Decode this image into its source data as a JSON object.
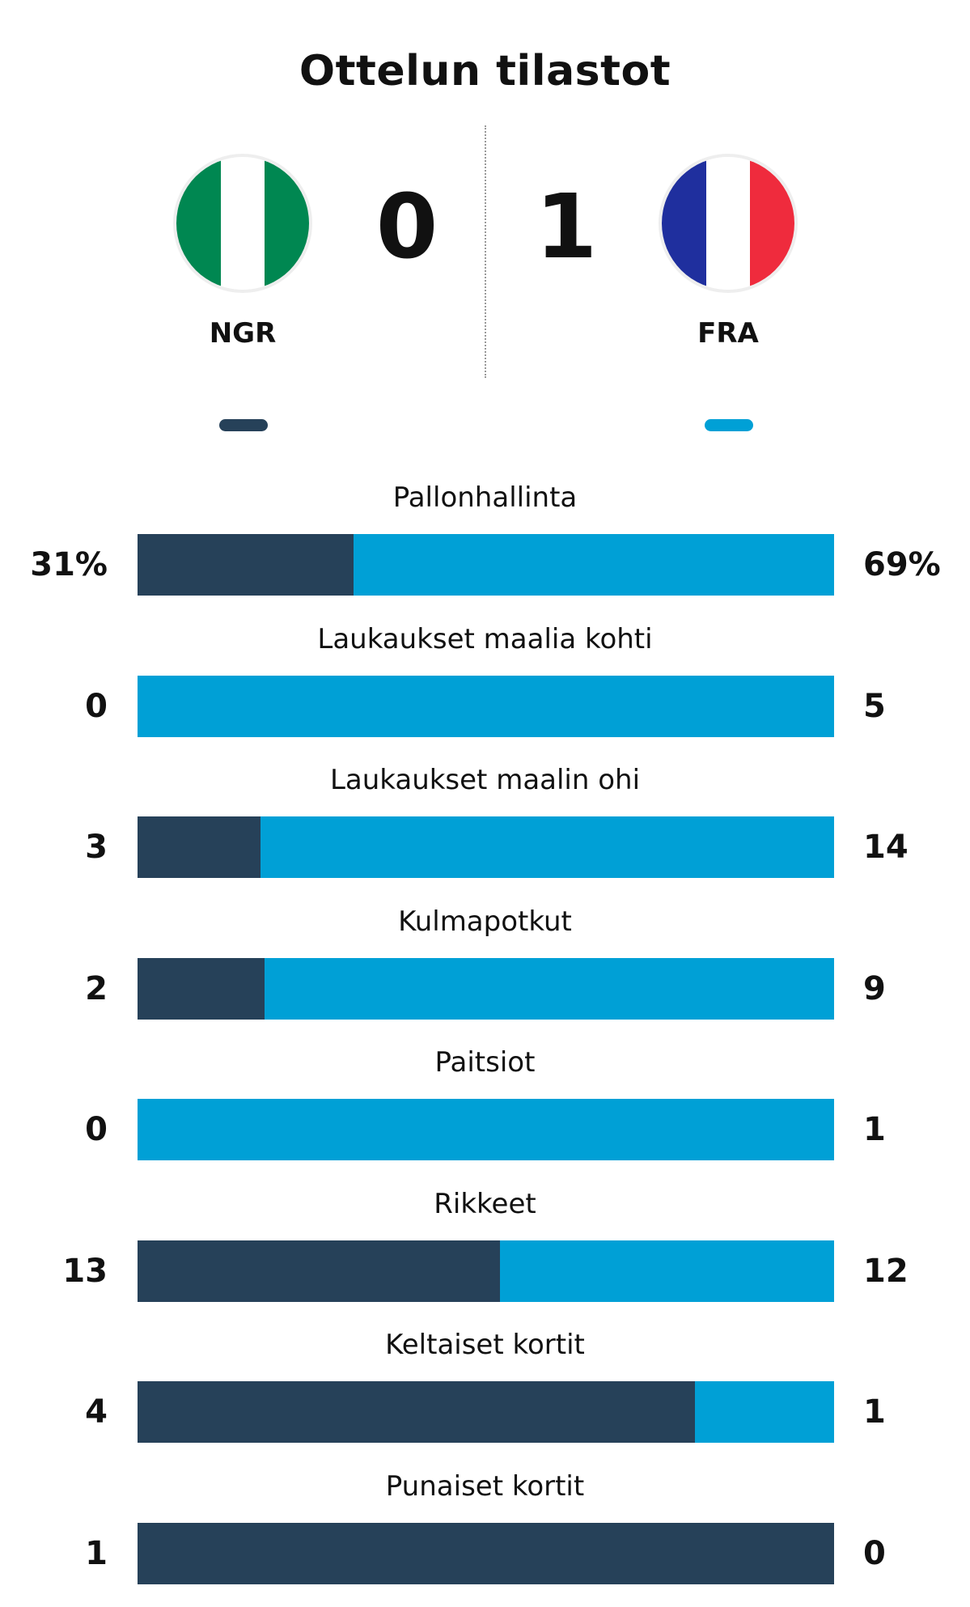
{
  "title": "Ottelun tilastot",
  "colors": {
    "home_bar": "#264159",
    "away_bar": "#00a0d6"
  },
  "home": {
    "code": "NGR",
    "score": "0",
    "flag_icon": "nigeria-flag-icon",
    "flag_stripes": [
      "#008751",
      "#ffffff",
      "#008751"
    ]
  },
  "away": {
    "code": "FRA",
    "score": "1",
    "flag_icon": "france-flag-icon",
    "flag_stripes": [
      "#1f2f9e",
      "#ffffff",
      "#ef2b3d"
    ]
  },
  "stats": [
    {
      "label": "Pallonhallinta",
      "home": "31%",
      "away": "69%",
      "home_share": 0.31
    },
    {
      "label": "Laukaukset maalia kohti",
      "home": "0",
      "away": "5",
      "home_share": 0.0
    },
    {
      "label": "Laukaukset maalin ohi",
      "home": "3",
      "away": "14",
      "home_share": 0.176
    },
    {
      "label": "Kulmapotkut",
      "home": "2",
      "away": "9",
      "home_share": 0.182
    },
    {
      "label": "Paitsiot",
      "home": "0",
      "away": "1",
      "home_share": 0.0
    },
    {
      "label": "Rikkeet",
      "home": "13",
      "away": "12",
      "home_share": 0.52
    },
    {
      "label": "Keltaiset kortit",
      "home": "4",
      "away": "1",
      "home_share": 0.8
    },
    {
      "label": "Punaiset kortit",
      "home": "1",
      "away": "0",
      "home_share": 1.0
    }
  ]
}
